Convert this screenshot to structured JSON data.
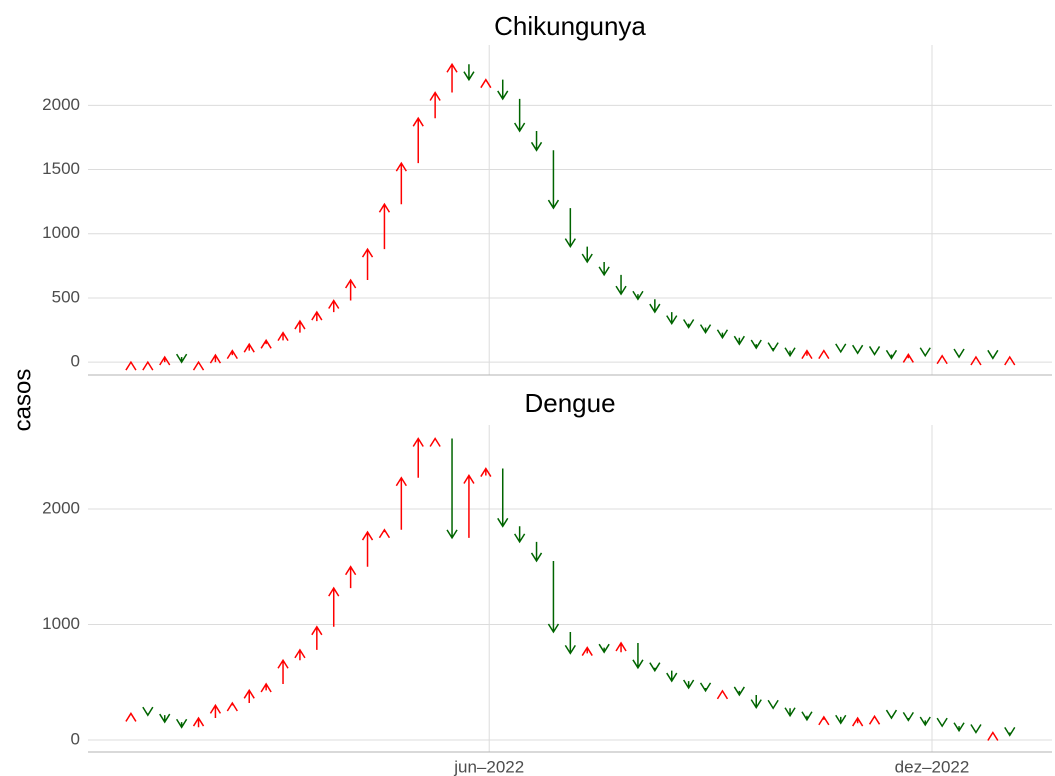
{
  "chart_data": [
    {
      "type": "arrow",
      "title": "Chikungunya",
      "y_label": "casos",
      "x": [
        1,
        2,
        3,
        4,
        5,
        6,
        7,
        8,
        9,
        10,
        11,
        12,
        13,
        14,
        15,
        16,
        17,
        18,
        19,
        20,
        21,
        22,
        23,
        24,
        25,
        26,
        27,
        28,
        29,
        30,
        31,
        32,
        33,
        34,
        35,
        36,
        37,
        38,
        39,
        40,
        41,
        42,
        43,
        44,
        45,
        46,
        47,
        48,
        49,
        50,
        51,
        52,
        53
      ],
      "values": [
        0,
        0,
        40,
        0,
        0,
        55,
        90,
        140,
        170,
        230,
        320,
        390,
        480,
        640,
        880,
        1230,
        1550,
        1900,
        2100,
        2320,
        2200,
        2200,
        2050,
        1800,
        1650,
        1200,
        900,
        780,
        680,
        530,
        490,
        390,
        300,
        270,
        230,
        190,
        140,
        110,
        90,
        50,
        90,
        90,
        80,
        70,
        60,
        30,
        60,
        50,
        50,
        40,
        40,
        30,
        40
      ],
      "xlim": [
        -1.54,
        55.5
      ],
      "ylim": [
        -100,
        2470
      ],
      "yticks": [
        0,
        500,
        1000,
        1500,
        2000
      ],
      "up_color": "#ff0000",
      "down_color": "#006400",
      "grid": true
    },
    {
      "type": "arrow",
      "title": "Dengue",
      "x": [
        1,
        2,
        3,
        4,
        5,
        6,
        7,
        8,
        9,
        10,
        11,
        12,
        13,
        14,
        15,
        16,
        17,
        18,
        19,
        20,
        21,
        22,
        23,
        24,
        25,
        26,
        27,
        28,
        29,
        30,
        31,
        32,
        33,
        34,
        35,
        36,
        37,
        38,
        39,
        40,
        41,
        42,
        43,
        44,
        45,
        46,
        47,
        48,
        49,
        50,
        51,
        52,
        53
      ],
      "values": [
        230,
        215,
        155,
        110,
        190,
        300,
        320,
        430,
        485,
        690,
        780,
        980,
        1315,
        1500,
        1800,
        1820,
        2270,
        2610,
        2610,
        1750,
        2290,
        2350,
        1850,
        1715,
        1550,
        935,
        750,
        800,
        760,
        840,
        625,
        600,
        510,
        450,
        425,
        425,
        390,
        280,
        275,
        210,
        175,
        200,
        145,
        190,
        205,
        190,
        170,
        130,
        120,
        80,
        65,
        65,
        40
      ],
      "xlim": [
        -1.54,
        55.5
      ],
      "ylim": [
        -104,
        2727
      ],
      "yticks": [
        0,
        1000,
        2000
      ],
      "xticks": [
        {
          "value": 22.2,
          "label": "jun–2022"
        },
        {
          "value": 48.4,
          "label": "dez–2022"
        }
      ],
      "up_color": "#ff0000",
      "down_color": "#006400",
      "grid": true
    }
  ]
}
